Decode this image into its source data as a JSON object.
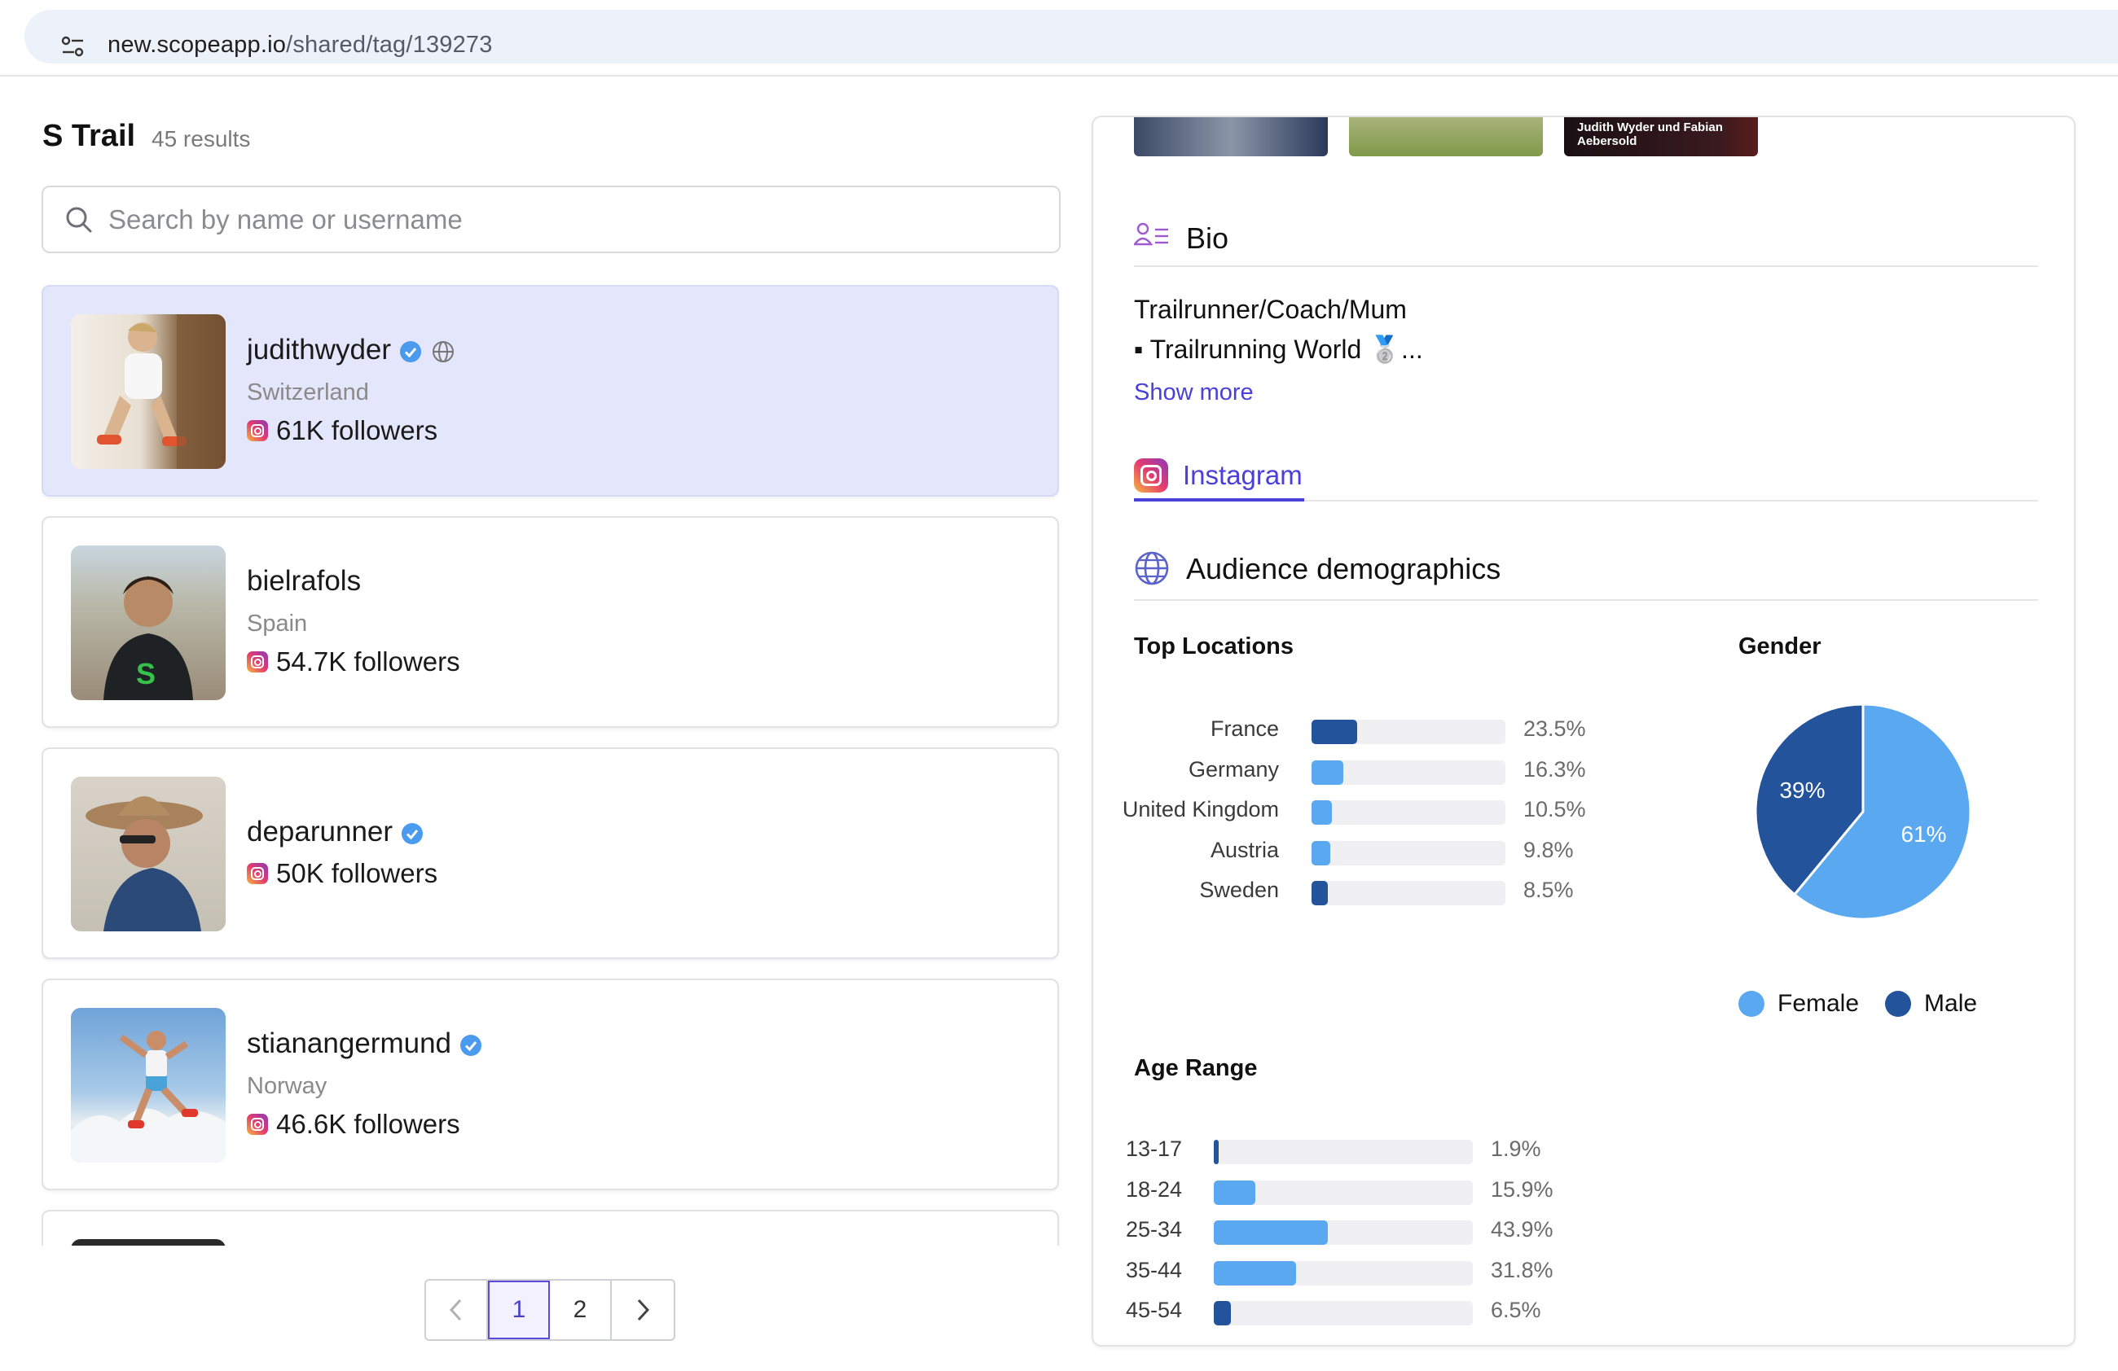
{
  "browser": {
    "url_domain": "new.scopeapp.io",
    "url_path": "/shared/tag/139273"
  },
  "list": {
    "title": "S Trail",
    "count": "45 results",
    "search_placeholder": "Search by name or username",
    "cards": [
      {
        "username": "judithwyder",
        "country": "Switzerland",
        "followers": "61K followers",
        "verified": true,
        "selected": true
      },
      {
        "username": "bielrafols",
        "country": "Spain",
        "followers": "54.7K followers",
        "verified": false,
        "selected": false
      },
      {
        "username": "deparunner",
        "country": "",
        "followers": "50K followers",
        "verified": true,
        "selected": false
      },
      {
        "username": "stianangermund",
        "country": "Norway",
        "followers": "46.6K followers",
        "verified": true,
        "selected": false
      }
    ]
  },
  "pagination": {
    "pages": [
      "1",
      "2"
    ],
    "current": "1"
  },
  "profile": {
    "thumb_caption": "Judith Wyder und Fabian Aebersold",
    "bio_title": "Bio",
    "bio_line1": "Trailrunner/Coach/Mum",
    "bio_line2": "▪ Trailrunning World 🥈...",
    "show_more": "Show more",
    "tab_instagram": "Instagram",
    "audience_title": "Audience demographics",
    "top_locations_label": "Top Locations",
    "gender_label": "Gender",
    "age_range_label": "Age Range",
    "legend_female": "Female",
    "legend_male": "Male",
    "colors": {
      "dark_blue": "#23539b",
      "light_blue": "#5aa9f0",
      "accent": "#4a3fd9"
    }
  },
  "chart_data": [
    {
      "type": "bar",
      "title": "Top Locations",
      "categories": [
        "France",
        "Germany",
        "United Kingdom",
        "Austria",
        "Sweden"
      ],
      "values": [
        23.5,
        16.3,
        10.5,
        9.8,
        8.5
      ],
      "labels": [
        "23.5%",
        "16.3%",
        "10.5%",
        "9.8%",
        "8.5%"
      ],
      "xlim": [
        0,
        100
      ],
      "colors": [
        "#23539b",
        "#5aa9f0",
        "#5aa9f0",
        "#5aa9f0",
        "#23539b"
      ]
    },
    {
      "type": "pie",
      "title": "Gender",
      "categories": [
        "Female",
        "Male"
      ],
      "values": [
        61,
        39
      ],
      "labels": [
        "61%",
        "39%"
      ],
      "colors": [
        "#5aa9f0",
        "#23539b"
      ],
      "legend": "bottom"
    },
    {
      "type": "bar",
      "title": "Age Range",
      "categories": [
        "13-17",
        "18-24",
        "25-34",
        "35-44",
        "45-54"
      ],
      "values": [
        1.9,
        15.9,
        43.9,
        31.8,
        6.5
      ],
      "labels": [
        "1.9%",
        "15.9%",
        "43.9%",
        "31.8%",
        "6.5%"
      ],
      "xlim": [
        0,
        100
      ],
      "colors": [
        "#23539b",
        "#5aa9f0",
        "#5aa9f0",
        "#5aa9f0",
        "#23539b"
      ]
    }
  ]
}
